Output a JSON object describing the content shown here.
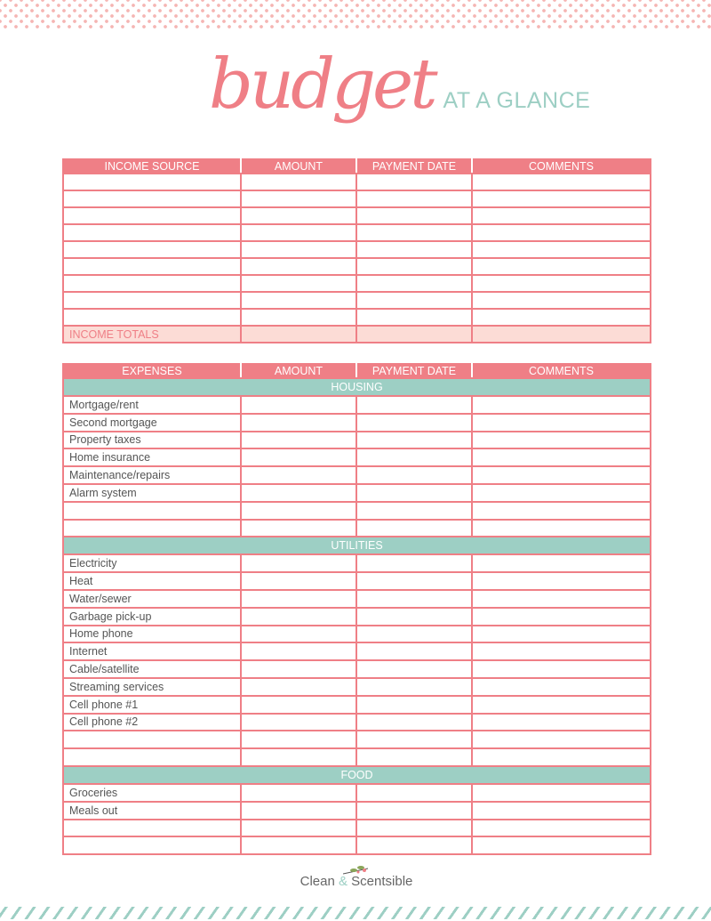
{
  "title": {
    "script": "budget",
    "subtitle": "AT A GLANCE"
  },
  "income": {
    "headers": [
      "INCOME SOURCE",
      "AMOUNT",
      "PAYMENT DATE",
      "COMMENTS"
    ],
    "empty_rows": 9,
    "totals_label": "INCOME TOTALS"
  },
  "expenses": {
    "headers": [
      "EXPENSES",
      "AMOUNT",
      "PAYMENT DATE",
      "COMMENTS"
    ],
    "sections": [
      {
        "name": "HOUSING",
        "items": [
          "Mortgage/rent",
          "Second mortgage",
          "Property taxes",
          "Home insurance",
          "Maintenance/repairs",
          "Alarm system",
          "",
          ""
        ]
      },
      {
        "name": "UTILITIES",
        "items": [
          "Electricity",
          "Heat",
          "Water/sewer",
          "Garbage pick-up",
          "Home phone",
          "Internet",
          "Cable/satellite",
          "Streaming services",
          "Cell phone #1",
          "Cell phone #2",
          "",
          ""
        ]
      },
      {
        "name": "FOOD",
        "items": [
          "Groceries",
          "Meals out",
          "",
          ""
        ]
      }
    ]
  },
  "footer": {
    "logo_left": "Clean",
    "logo_amp": "&",
    "logo_right": "Scentsible"
  },
  "colors": {
    "pink": "#ef7f86",
    "teal": "#9dcfc4",
    "light_pink": "#fcdcd6"
  }
}
